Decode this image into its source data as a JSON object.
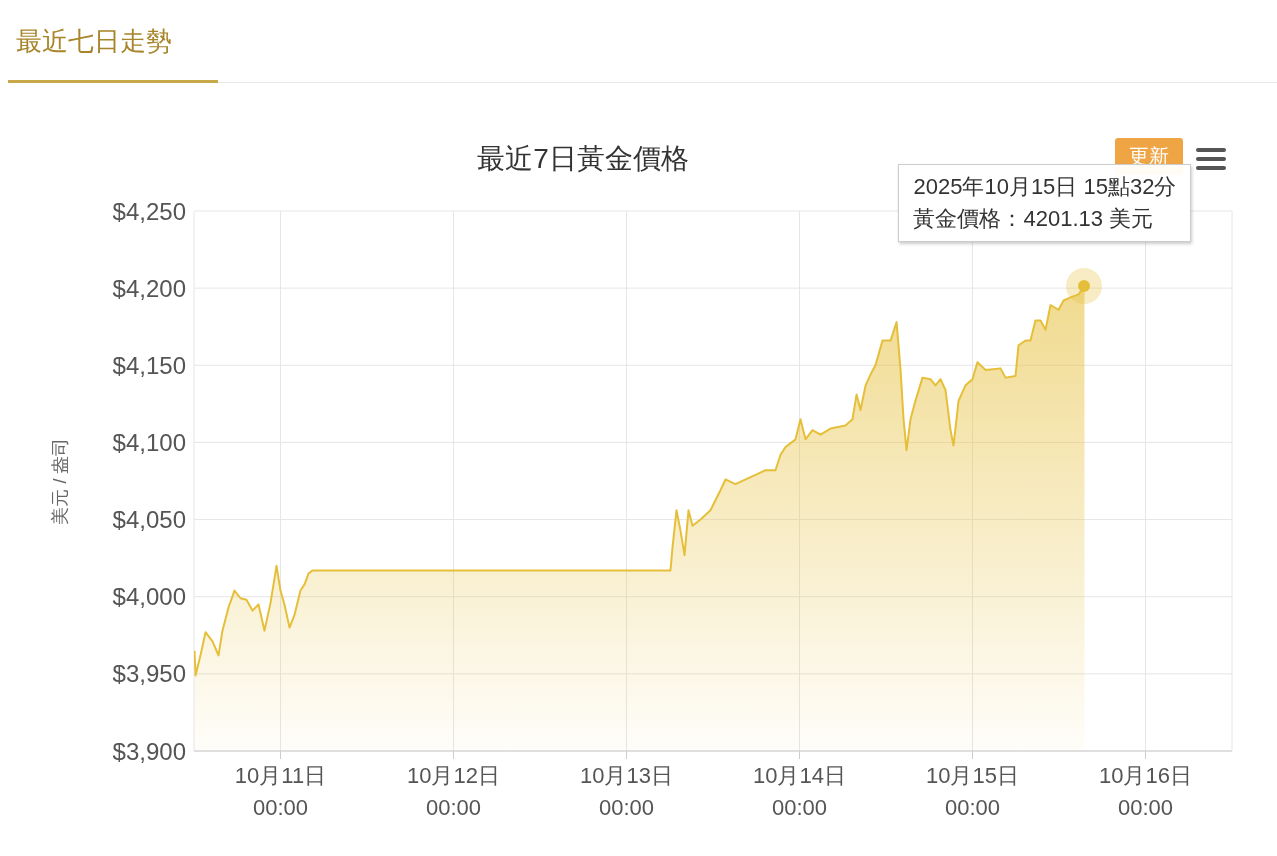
{
  "chart_data": {
    "type": "area",
    "title": "最近7日黃金價格",
    "ylabel": "美元 / 盎司",
    "annotations": [
      "最近七日走勢",
      "更新",
      "2025年10月15日 15點32分",
      "黃金價格：4201.13 美元"
    ],
    "x": [
      "2025-10-10T12:04",
      "2025-10-10T12:13",
      "2025-10-10T12:54",
      "2025-10-10T13:36",
      "2025-10-10T14:34",
      "2025-10-10T15:24",
      "2025-10-10T15:57",
      "2025-10-10T16:47",
      "2025-10-10T17:37",
      "2025-10-10T18:27",
      "2025-10-10T19:17",
      "2025-10-10T20:07",
      "2025-10-10T20:57",
      "2025-10-10T21:47",
      "2025-10-10T22:37",
      "2025-10-10T23:27",
      "2025-10-11T00:00",
      "2025-10-11T00:33",
      "2025-10-11T01:15",
      "2025-10-11T01:56",
      "2025-10-11T02:46",
      "2025-10-11T03:20",
      "2025-10-11T03:53",
      "2025-10-11T04:26",
      "2025-10-11T05:00",
      "2025-10-13T06:06",
      "2025-10-13T06:23",
      "2025-10-13T06:56",
      "2025-10-13T07:29",
      "2025-10-13T08:03",
      "2025-10-13T08:36",
      "2025-10-13T09:10",
      "2025-10-13T10:16",
      "2025-10-13T11:39",
      "2025-10-13T13:02",
      "2025-10-13T13:44",
      "2025-10-13T15:07",
      "2025-10-13T16:31",
      "2025-10-13T17:54",
      "2025-10-13T19:17",
      "2025-10-13T20:40",
      "2025-10-13T21:22",
      "2025-10-13T22:04",
      "2025-10-13T23:27",
      "2025-10-14T00:08",
      "2025-10-14T00:50",
      "2025-10-14T01:48",
      "2025-10-14T02:55",
      "2025-10-14T04:18",
      "2025-10-14T06:23",
      "2025-10-14T07:21",
      "2025-10-14T07:55",
      "2025-10-14T08:28",
      "2025-10-14T09:10",
      "2025-10-14T09:51",
      "2025-10-14T10:32",
      "2025-10-14T11:31",
      "2025-10-14T12:38",
      "2025-10-14T13:28",
      "2025-10-14T14:01",
      "2025-10-14T14:26",
      "2025-10-14T14:51",
      "2025-10-14T15:24",
      "2025-10-14T16:05",
      "2025-10-14T17:04",
      "2025-10-14T18:10",
      "2025-10-14T18:52",
      "2025-10-14T19:34",
      "2025-10-14T20:15",
      "2025-10-14T20:57",
      "2025-10-14T21:22",
      "2025-10-14T22:04",
      "2025-10-14T23:02",
      "2025-10-15T00:00",
      "2025-10-15T00:41",
      "2025-10-15T01:49",
      "2025-10-15T03:53",
      "2025-10-15T04:35",
      "2025-10-15T05:58",
      "2025-10-15T06:23",
      "2025-10-15T07:21",
      "2025-10-15T08:03",
      "2025-10-15T08:44",
      "2025-10-15T09:26",
      "2025-10-15T10:08",
      "2025-10-15T10:49",
      "2025-10-15T11:56",
      "2025-10-15T12:38",
      "2025-10-15T13:36",
      "2025-10-15T14:43",
      "2025-10-15T15:32"
    ],
    "series": [
      {
        "color": "#e6bf3a",
        "values": [
          3965,
          3949,
          3962,
          3977,
          3971,
          3962,
          3978,
          3993,
          4004,
          3999,
          3998,
          3991,
          3995,
          3978,
          3996,
          4020,
          4004,
          3995,
          3980,
          3988,
          4004,
          4008,
          4015,
          4017,
          4017,
          4017,
          4032,
          4056,
          4043,
          4027,
          4056,
          4046,
          4050,
          4056,
          4069,
          4076,
          4073,
          4076,
          4079,
          4082,
          4082,
          4092,
          4097,
          4102,
          4115,
          4102,
          4108,
          4105,
          4109,
          4111,
          4115,
          4131,
          4121,
          4137,
          4144,
          4150,
          4166,
          4166,
          4178,
          4147,
          4115,
          4095,
          4115,
          4127,
          4142,
          4141,
          4137,
          4141,
          4134,
          4108,
          4098,
          4127,
          4137,
          4141,
          4152,
          4147,
          4148,
          4142,
          4143,
          4163,
          4166,
          4166,
          4179,
          4179,
          4173,
          4189,
          4186,
          4192,
          4194,
          4196,
          4201.13
        ]
      }
    ],
    "xlim": [
      "2025-10-10T12:00",
      "2025-10-16T12:00"
    ],
    "xticks": [
      {
        "value": "2025-10-11T00:00",
        "label": "10月11日\n00:00"
      },
      {
        "value": "2025-10-12T00:00",
        "label": "10月12日\n00:00"
      },
      {
        "value": "2025-10-13T00:00",
        "label": "10月13日\n00:00"
      },
      {
        "value": "2025-10-14T00:00",
        "label": "10月14日\n00:00"
      },
      {
        "value": "2025-10-15T00:00",
        "label": "10月15日\n00:00"
      },
      {
        "value": "2025-10-16T00:00",
        "label": "10月16日\n00:00"
      }
    ],
    "ylim": [
      3900,
      4250
    ],
    "yticks": [
      {
        "value": 3900,
        "label": "$3,900"
      },
      {
        "value": 3950,
        "label": "$3,950"
      },
      {
        "value": 4000,
        "label": "$4,000"
      },
      {
        "value": 4050,
        "label": "$4,050"
      },
      {
        "value": 4100,
        "label": "$4,100"
      },
      {
        "value": 4150,
        "label": "$4,150"
      },
      {
        "value": 4200,
        "label": "$4,200"
      },
      {
        "value": 4250,
        "label": "$4,250"
      }
    ],
    "grid": true,
    "legend": false,
    "marker": "none"
  }
}
